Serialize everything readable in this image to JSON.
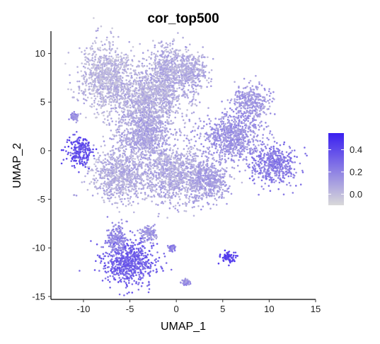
{
  "chart_data": {
    "type": "scatter",
    "title": "cor_top500",
    "xlabel": "UMAP_1",
    "ylabel": "UMAP_2",
    "xlim": [
      -13.5,
      15
    ],
    "ylim": [
      -15.3,
      12.3
    ],
    "xticks": [
      -10,
      -5,
      0,
      5,
      10,
      15
    ],
    "yticks": [
      -15,
      -10,
      -5,
      0,
      5,
      10
    ],
    "grid": false,
    "legend": {
      "placement": "right",
      "type": "colorbar",
      "ticks": [
        0.0,
        0.2,
        0.4
      ],
      "range": [
        -0.1,
        0.55
      ],
      "color_low": "#d9d9d9",
      "color_high": "#3a1ff0"
    },
    "clusters": [
      {
        "cx": -7.5,
        "cy": 7.5,
        "rx": 2.6,
        "ry": 3.2,
        "v": 0.02
      },
      {
        "cx": -3.0,
        "cy": 5.0,
        "rx": 3.0,
        "ry": 3.5,
        "v": 0.04
      },
      {
        "cx": -1.0,
        "cy": 8.0,
        "rx": 1.4,
        "ry": 2.6,
        "v": 0.05
      },
      {
        "cx": 1.5,
        "cy": 8.0,
        "rx": 1.6,
        "ry": 2.2,
        "v": 0.06
      },
      {
        "cx": 8.0,
        "cy": 5.0,
        "rx": 1.8,
        "ry": 1.5,
        "v": 0.12
      },
      {
        "cx": 6.0,
        "cy": 1.5,
        "rx": 3.0,
        "ry": 2.2,
        "v": 0.14
      },
      {
        "cx": 10.5,
        "cy": -1.5,
        "rx": 2.2,
        "ry": 1.8,
        "v": 0.22
      },
      {
        "cx": 0.0,
        "cy": -2.5,
        "rx": 3.4,
        "ry": 2.6,
        "v": 0.06
      },
      {
        "cx": -6.0,
        "cy": -2.5,
        "rx": 2.8,
        "ry": 2.4,
        "v": 0.05
      },
      {
        "cx": -3.5,
        "cy": 1.5,
        "rx": 2.6,
        "ry": 2.2,
        "v": 0.08
      },
      {
        "cx": 3.5,
        "cy": -3.0,
        "rx": 1.8,
        "ry": 2.0,
        "v": 0.1
      },
      {
        "cx": -10.5,
        "cy": 0.0,
        "rx": 1.2,
        "ry": 1.3,
        "v": 0.38
      },
      {
        "cx": -11.0,
        "cy": 3.5,
        "rx": 0.4,
        "ry": 0.4,
        "v": 0.15
      },
      {
        "cx": -5.0,
        "cy": -11.5,
        "rx": 2.7,
        "ry": 2.0,
        "v": 0.32
      },
      {
        "cx": -6.5,
        "cy": -9.0,
        "rx": 1.0,
        "ry": 1.4,
        "v": 0.18
      },
      {
        "cx": -3.0,
        "cy": -8.5,
        "rx": 0.9,
        "ry": 0.7,
        "v": 0.12
      },
      {
        "cx": 5.5,
        "cy": -11.0,
        "rx": 0.7,
        "ry": 0.5,
        "v": 0.42
      },
      {
        "cx": -0.5,
        "cy": -10.0,
        "rx": 0.35,
        "ry": 0.35,
        "v": 0.2
      },
      {
        "cx": 1.0,
        "cy": -13.5,
        "rx": 0.4,
        "ry": 0.25,
        "v": 0.15
      }
    ]
  }
}
